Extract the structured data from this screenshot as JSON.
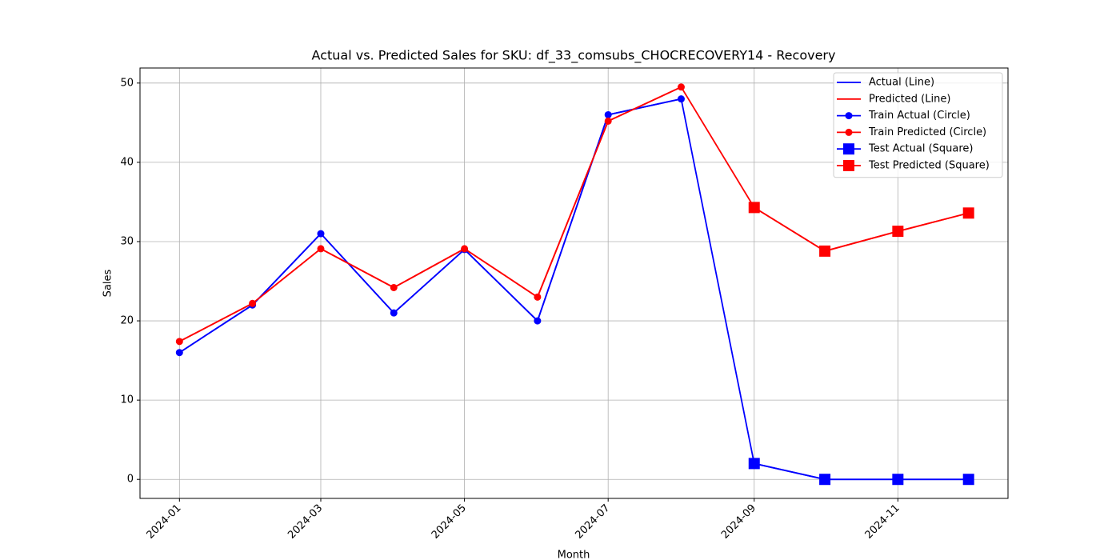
{
  "chart_data": {
    "type": "line",
    "title": "Actual vs. Predicted Sales for SKU: df_33_comsubs_CHOCRECOVERY14 - Recovery",
    "xlabel": "Month",
    "ylabel": "Sales",
    "x": [
      "2024-01",
      "2024-02",
      "2024-03",
      "2024-04",
      "2024-05",
      "2024-06",
      "2024-07",
      "2024-08",
      "2024-09",
      "2024-10",
      "2024-11",
      "2024-12"
    ],
    "xticks": [
      "2024-01",
      "2024-03",
      "2024-05",
      "2024-07",
      "2024-09",
      "2024-11"
    ],
    "ylim": [
      -2.4,
      51.9
    ],
    "yticks": [
      0,
      10,
      20,
      30,
      40,
      50
    ],
    "grid": true,
    "legend": "upper right",
    "series": [
      {
        "name": "Actual (Line)",
        "color": "#0000ff",
        "marker": "none",
        "values": [
          16,
          22,
          31,
          21,
          29,
          20,
          46,
          48,
          2,
          0,
          0,
          0
        ]
      },
      {
        "name": "Predicted (Line)",
        "color": "#ff0000",
        "marker": "none",
        "values": [
          17.4,
          22.2,
          29.1,
          24.2,
          29.1,
          23.0,
          45.2,
          49.5,
          34.3,
          28.8,
          31.3,
          33.6
        ]
      },
      {
        "name": "Train Actual (Circle)",
        "color": "#0000ff",
        "marker": "circle",
        "values": [
          16,
          22,
          31,
          21,
          29,
          20,
          46,
          48,
          null,
          null,
          null,
          null
        ]
      },
      {
        "name": "Train Predicted (Circle)",
        "color": "#ff0000",
        "marker": "circle",
        "values": [
          17.4,
          22.2,
          29.1,
          24.2,
          29.1,
          23.0,
          45.2,
          49.5,
          null,
          null,
          null,
          null
        ]
      },
      {
        "name": "Test Actual (Square)",
        "color": "#0000ff",
        "marker": "square",
        "values": [
          null,
          null,
          null,
          null,
          null,
          null,
          null,
          null,
          2,
          0,
          0,
          0
        ]
      },
      {
        "name": "Test Predicted (Square)",
        "color": "#ff0000",
        "marker": "square",
        "values": [
          null,
          null,
          null,
          null,
          null,
          null,
          null,
          null,
          34.3,
          28.8,
          31.3,
          33.6
        ]
      }
    ]
  }
}
